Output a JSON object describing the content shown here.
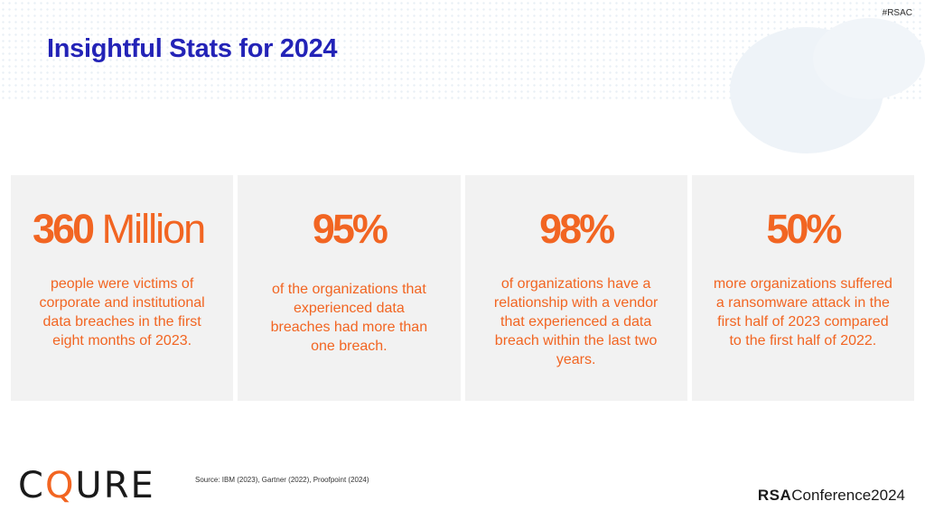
{
  "header": {
    "hashtag": "#RSAC",
    "title": "Insightful Stats for 2024"
  },
  "stats": [
    {
      "number": "360",
      "unit": " Million",
      "description": "people were victims of corporate and institutional data breaches in the first eight months of 2023."
    },
    {
      "number": "95%",
      "unit": "",
      "description": "of the organizations that experienced data breaches had more than one breach."
    },
    {
      "number": "98%",
      "unit": "",
      "description": "of organizations have a relationship with a vendor that experienced a data breach within the last two years."
    },
    {
      "number": "50%",
      "unit": "",
      "description": "more organizations suffered a ransomware attack in the first half of 2023 compared to the first half of 2022."
    }
  ],
  "footer": {
    "source": "Source: IBM (2023), Gartner (2022),  Proofpoint (2024)",
    "logo_left_pre": "C",
    "logo_left_q": "Q",
    "logo_left_post": "URE",
    "logo_right_bold": "RSA",
    "logo_right_rest": "Conference2024"
  },
  "colors": {
    "title": "#2323b7",
    "accent": "#f26522",
    "card_bg": "#f2f2f2"
  }
}
